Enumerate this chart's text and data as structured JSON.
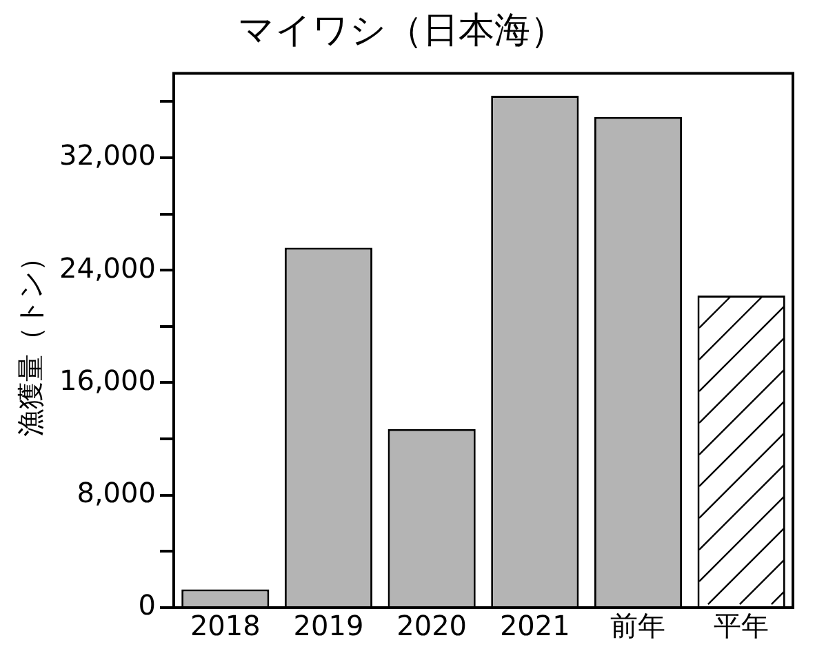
{
  "chart_data": {
    "type": "bar",
    "title": "マイワシ（日本海）",
    "ylabel": "漁獲量（トン）",
    "categories": [
      "2018",
      "2019",
      "2020",
      "2021",
      "前年",
      "平年"
    ],
    "values": [
      1300,
      25600,
      12700,
      36400,
      34900,
      22200
    ],
    "colors": [
      "#b4b4b4",
      "#b4b4b4",
      "#b4b4b4",
      "#b4b4b4",
      "#b4b4b4",
      "#ffffff"
    ],
    "ylim": [
      0,
      38000
    ],
    "yticks": [
      0,
      {
        "value": 4000,
        "label": null
      },
      {
        "value": 8000,
        "label": "8,000"
      },
      {
        "value": 12000,
        "label": null
      },
      {
        "value": 16000,
        "label": "16,000"
      },
      {
        "value": 20000,
        "label": null
      },
      {
        "value": 24000,
        "label": "24,000"
      },
      {
        "value": 28000,
        "label": null
      },
      {
        "value": 32000,
        "label": "32,000"
      },
      {
        "value": 36000,
        "label": null
      }
    ],
    "grid": false,
    "legend": false
  }
}
